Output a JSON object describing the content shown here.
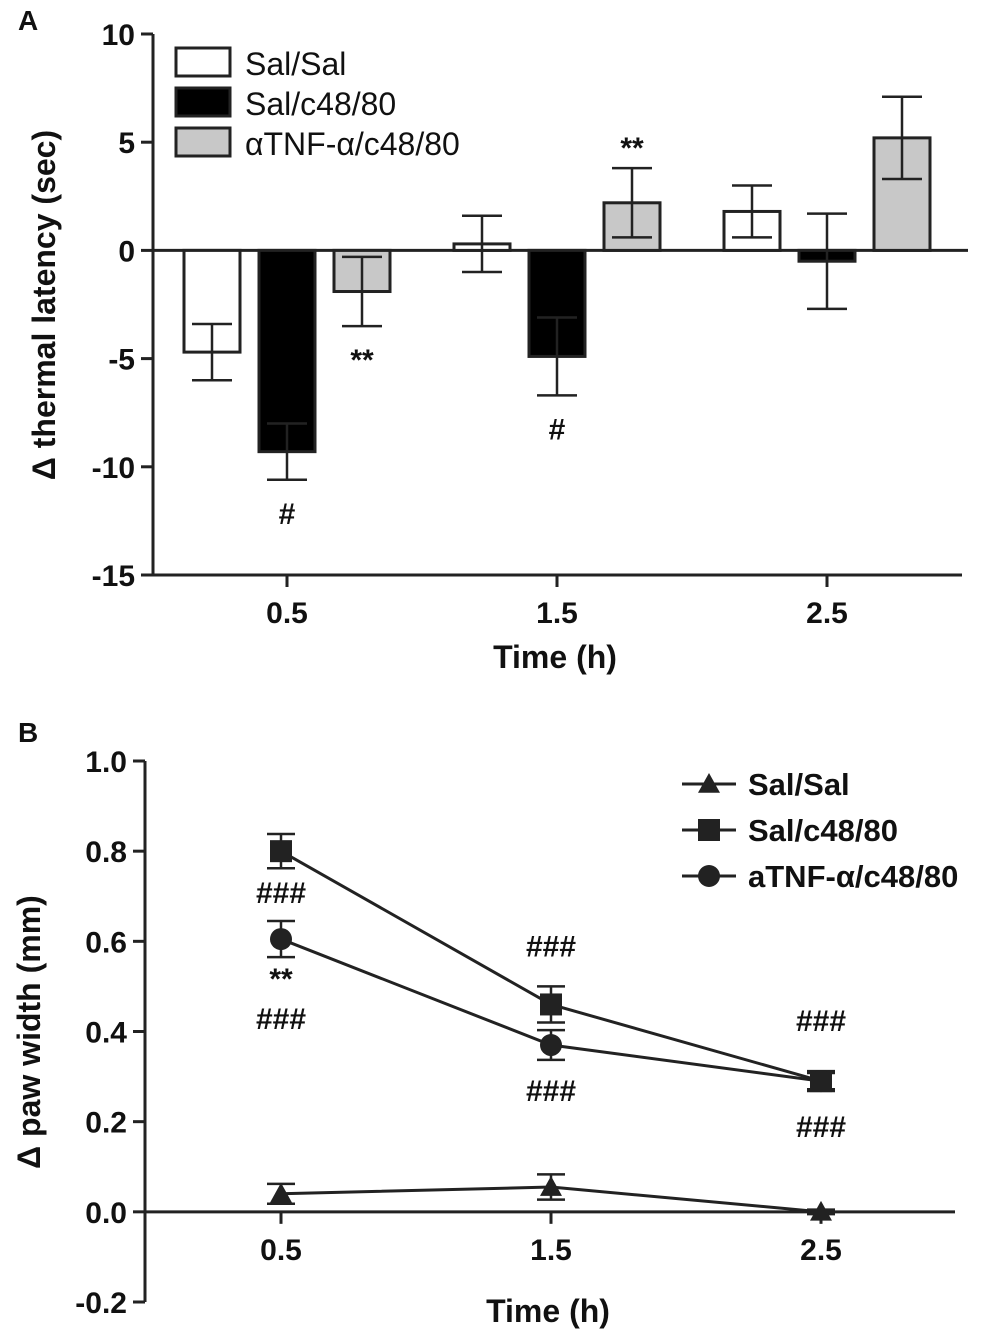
{
  "chart_data": [
    {
      "panel": "A",
      "type": "bar",
      "xlabel": "Time (h)",
      "ylabel": "Δ thermal latency (sec)",
      "ylim": [
        -15,
        10
      ],
      "yticks": [
        10,
        5,
        0,
        -5,
        -10,
        -15
      ],
      "categories": [
        "0.5",
        "1.5",
        "2.5"
      ],
      "legend_position": "top-left",
      "series": [
        {
          "name": "Sal/Sal",
          "color": "#ffffff",
          "values": [
            -4.7,
            0.3,
            1.8
          ],
          "errors": [
            1.3,
            1.3,
            1.2
          ],
          "annotations": [
            "",
            "",
            ""
          ]
        },
        {
          "name": "Sal/c48/80",
          "color": "#000000",
          "values": [
            -9.3,
            -4.9,
            -0.5
          ],
          "errors": [
            1.3,
            1.8,
            2.2
          ],
          "annotations": [
            "#",
            "#",
            ""
          ]
        },
        {
          "name": "αTNF-α/c48/80",
          "color": "#c8c8c8",
          "values": [
            -1.9,
            2.2,
            5.2
          ],
          "errors": [
            1.6,
            1.6,
            1.9
          ],
          "annotations": [
            "**",
            "**",
            ""
          ]
        }
      ]
    },
    {
      "panel": "B",
      "type": "line",
      "xlabel": "Time (h)",
      "ylabel": "Δ paw width (mm)",
      "ylim": [
        -0.2,
        1.0
      ],
      "yticks": [
        "1.0",
        "0.8",
        "0.6",
        "0.4",
        "0.2",
        "0.0",
        "-0.2"
      ],
      "categories": [
        "0.5",
        "1.5",
        "2.5"
      ],
      "legend_position": "top-right",
      "series": [
        {
          "name": "Sal/Sal",
          "marker": "triangle",
          "values": [
            0.04,
            0.055,
            0.0
          ],
          "errors": [
            0.022,
            0.028,
            0.005
          ],
          "annotations": [
            [],
            [],
            []
          ]
        },
        {
          "name": "Sal/c48/80",
          "marker": "square",
          "values": [
            0.8,
            0.46,
            0.29
          ],
          "errors": [
            0.038,
            0.04,
            0.022
          ],
          "annotations": [
            [
              "###"
            ],
            [
              "###"
            ],
            [
              "###"
            ]
          ]
        },
        {
          "name": "aTNF-α/c48/80",
          "marker": "circle",
          "values": [
            0.605,
            0.37,
            0.29
          ],
          "errors": [
            0.04,
            0.033,
            0.018
          ],
          "annotations": [
            [
              "**",
              "###"
            ],
            [
              "###"
            ],
            [
              "###"
            ]
          ]
        }
      ]
    }
  ]
}
